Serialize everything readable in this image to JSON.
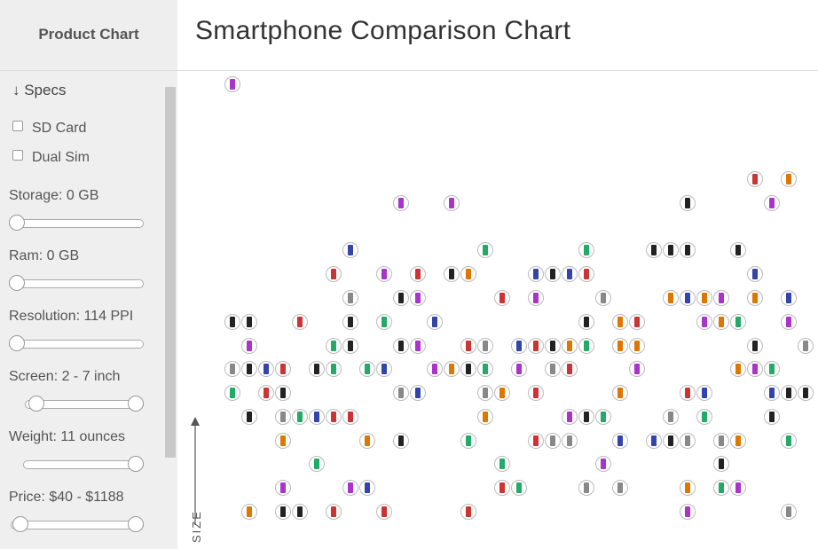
{
  "header": {
    "brand": "Product Chart",
    "title": "Smartphone Comparison Chart"
  },
  "sidebar": {
    "section": "↓ Specs",
    "checkboxes": [
      "SD Card",
      "Dual Sim"
    ],
    "filters": [
      "Storage: 0 GB",
      "Ram: 0 GB",
      "Resolution: 114 PPI",
      "Screen: 2 - 7 inch",
      "Weight: 11 ounces",
      "Price: $40 - $1188"
    ]
  },
  "chart": {
    "y_axis_label": "SIZE"
  }
}
